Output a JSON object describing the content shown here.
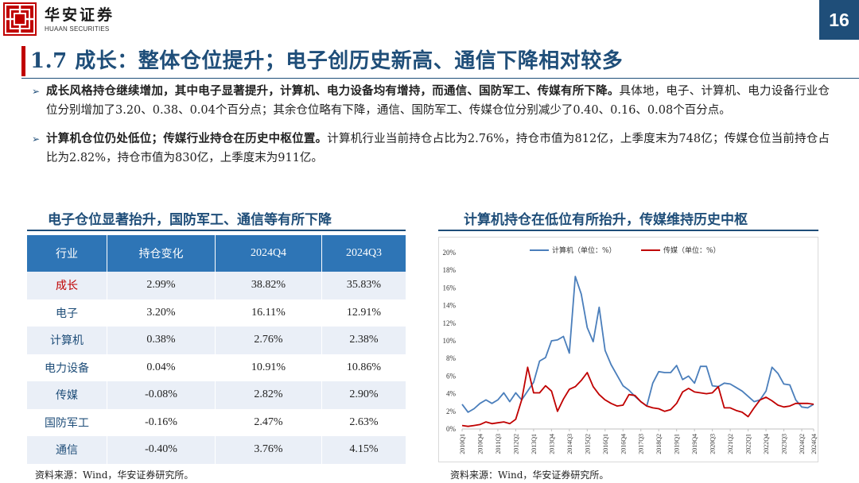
{
  "header": {
    "brand_cn": "华安证券",
    "brand_en": "HUAAN SECURITIES",
    "page_number": "16"
  },
  "title": "1.7 成长：整体仓位提升；电子创历史新高、通信下降相对较多",
  "bullets": [
    {
      "bold": "成长风格持仓继续增加，其中电子显著提升，计算机、电力设备均有增持，而通信、国防军工、传媒有所下降。",
      "text": "具体地，电子、计算机、电力设备行业仓位分别增加了3.20、0.38、0.04个百分点；其余仓位略有下降，通信、国防军工、传媒仓位分别减少了0.40、0.16、0.08个百分点。"
    },
    {
      "bold": "计算机仓位仍处低位；传媒行业持仓在历史中枢位置。",
      "text": "计算机行业当前持仓占比为2.76%，持仓市值为812亿，上季度末为748亿；传媒仓位当前持仓占比为2.82%，持仓市值为830亿，上季度末为911亿。"
    }
  ],
  "left_panel": {
    "title": "电子仓位显著抬升，国防军工、通信等有所下降",
    "headers": [
      "行业",
      "持仓变化",
      "2024Q4",
      "2024Q3"
    ],
    "rows": [
      [
        "成长",
        "2.99%",
        "38.82%",
        "35.83%"
      ],
      [
        "电子",
        "3.20%",
        "16.11%",
        "12.91%"
      ],
      [
        "计算机",
        "0.38%",
        "2.76%",
        "2.38%"
      ],
      [
        "电力设备",
        "0.04%",
        "10.91%",
        "10.86%"
      ],
      [
        "传媒",
        "-0.08%",
        "2.82%",
        "2.90%"
      ],
      [
        "国防军工",
        "-0.16%",
        "2.47%",
        "2.63%"
      ],
      [
        "通信",
        "-0.40%",
        "3.76%",
        "4.15%"
      ]
    ],
    "source": "资料来源：Wind，华安证券研究所。"
  },
  "right_panel": {
    "title": "计算机持仓在低位有所抬升，传媒维持历史中枢",
    "source": "资料来源：Wind，华安证券研究所。"
  },
  "chart_data": {
    "type": "line",
    "x": [
      "2010Q1",
      "2010Q2",
      "2010Q3",
      "2010Q4",
      "2011Q1",
      "2011Q2",
      "2011Q3",
      "2011Q4",
      "2012Q1",
      "2012Q2",
      "2012Q3",
      "2012Q4",
      "2013Q1",
      "2013Q2",
      "2013Q3",
      "2013Q4",
      "2014Q1",
      "2014Q2",
      "2014Q3",
      "2014Q4",
      "2015Q1",
      "2015Q2",
      "2015Q3",
      "2015Q4",
      "2016Q1",
      "2016Q2",
      "2016Q3",
      "2016Q4",
      "2017Q1",
      "2017Q2",
      "2017Q3",
      "2017Q4",
      "2018Q1",
      "2018Q2",
      "2018Q3",
      "2018Q4",
      "2019Q1",
      "2019Q2",
      "2019Q3",
      "2019Q4",
      "2020Q1",
      "2020Q2",
      "2020Q3",
      "2020Q4",
      "2021Q1",
      "2021Q2",
      "2021Q3",
      "2021Q4",
      "2022Q1",
      "2022Q2",
      "2022Q3",
      "2022Q4",
      "2023Q1",
      "2023Q2",
      "2023Q3",
      "2023Q4",
      "2024Q1",
      "2024Q2",
      "2024Q3",
      "2024Q4"
    ],
    "tick_labels": [
      "2010Q1",
      "2010Q4",
      "2011Q3",
      "2012Q2",
      "2013Q1",
      "2013Q4",
      "2014Q3",
      "2015Q2",
      "2016Q1",
      "2016Q4",
      "2017Q3",
      "2018Q2",
      "2019Q1",
      "2019Q4",
      "2020Q3",
      "2021Q2",
      "2022Q1",
      "2022Q4",
      "2023Q3",
      "2024Q2"
    ],
    "tick_extra": "2024Q4",
    "y_ticks": [
      "0%",
      "2%",
      "4%",
      "6%",
      "8%",
      "10%",
      "12%",
      "14%",
      "16%",
      "18%",
      "20%"
    ],
    "ylim": [
      0,
      20
    ],
    "series": [
      {
        "name": "计算机（单位：%）",
        "color": "#4a7ebb",
        "values": [
          2.8,
          1.9,
          2.3,
          2.9,
          3.3,
          2.9,
          3.3,
          4.1,
          3.1,
          4.1,
          3.3,
          4.3,
          5.3,
          7.7,
          8.1,
          10.0,
          10.1,
          10.5,
          8.6,
          17.3,
          15.3,
          11.5,
          9.9,
          13.8,
          8.9,
          7.3,
          6.1,
          4.9,
          4.4,
          3.7,
          3.1,
          2.6,
          5.2,
          6.5,
          6.4,
          6.4,
          7.2,
          5.6,
          6.0,
          5.2,
          7.1,
          7.1,
          4.9,
          4.8,
          5.2,
          5.1,
          4.7,
          4.3,
          3.7,
          3.1,
          3.3,
          4.3,
          7.0,
          6.3,
          5.1,
          5.0,
          3.3,
          2.5,
          2.4,
          2.8
        ]
      },
      {
        "name": "传媒（单位：%）",
        "color": "#c00000",
        "values": [
          0.4,
          0.3,
          0.4,
          0.5,
          0.8,
          0.6,
          0.7,
          0.8,
          0.6,
          1.1,
          3.3,
          7.0,
          4.1,
          4.1,
          4.9,
          4.3,
          2.0,
          3.4,
          4.5,
          4.8,
          5.5,
          6.4,
          4.8,
          3.9,
          3.3,
          2.9,
          2.6,
          2.7,
          3.9,
          3.8,
          3.1,
          2.6,
          2.4,
          2.3,
          2.0,
          2.2,
          2.9,
          4.2,
          4.6,
          4.2,
          4.1,
          4.0,
          4.1,
          4.8,
          2.4,
          2.4,
          2.1,
          1.9,
          1.4,
          2.4,
          3.3,
          3.6,
          3.2,
          2.7,
          2.5,
          2.6,
          2.9,
          2.9,
          2.9,
          2.8
        ]
      }
    ]
  },
  "colors": {
    "brand_blue": "#1f4e79",
    "header_blue": "#2e75b6",
    "accent_red": "#c00000",
    "row_tint": "#eaeff7"
  }
}
